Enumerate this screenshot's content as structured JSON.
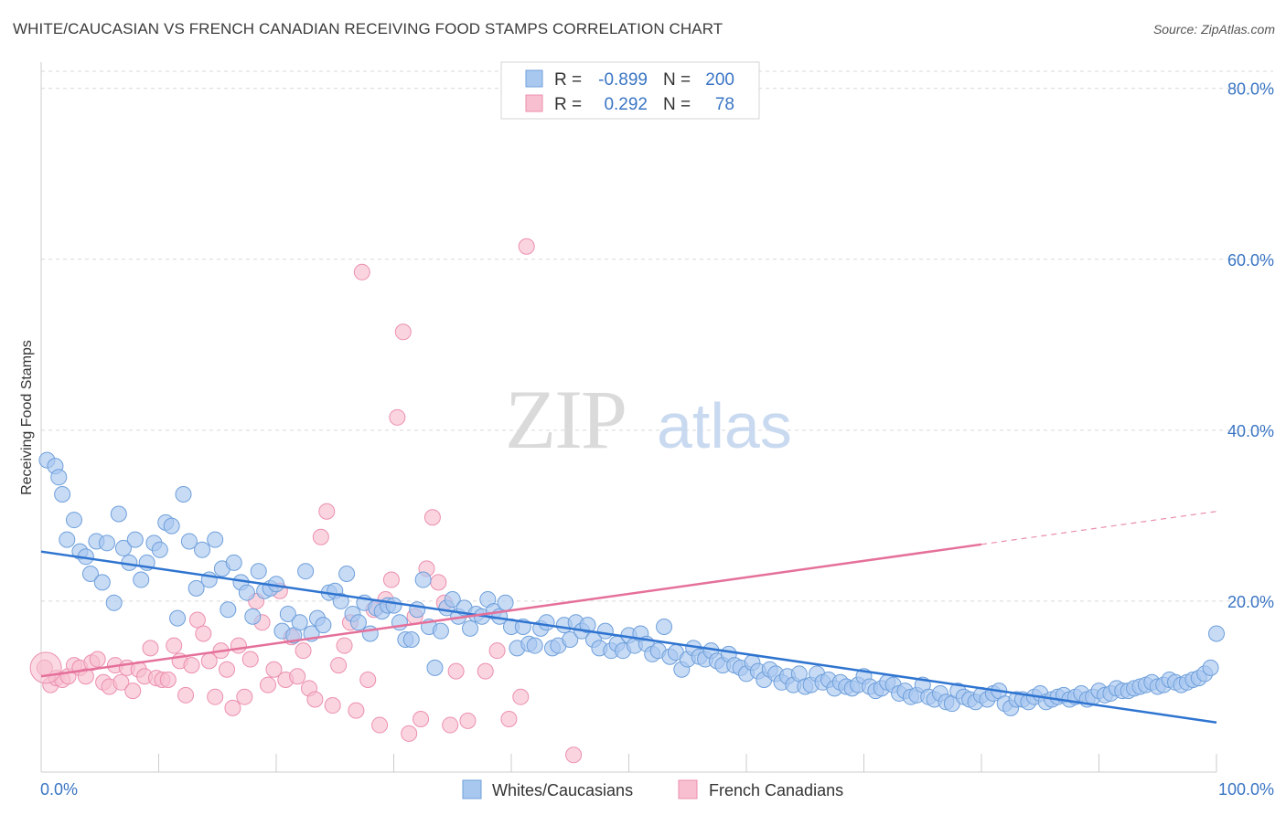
{
  "title": "WHITE/CAUCASIAN VS FRENCH CANADIAN RECEIVING FOOD STAMPS CORRELATION CHART",
  "source": "Source: ZipAtlas.com",
  "watermark": {
    "zip": "ZIP",
    "atlas": "atlas"
  },
  "colors": {
    "blue_fill": "#a9c8ef",
    "blue_stroke": "#6e9fdb",
    "blue_line": "#2e74d0",
    "pink_fill": "#f7bfd0",
    "pink_stroke": "#ec8fae",
    "pink_line": "#e5709a",
    "tick_text": "#3a75c4",
    "grid": "#d9d9d9"
  },
  "legend": {
    "r_label": "R =",
    "n_label": "N =",
    "rows": [
      {
        "r": "-0.899",
        "n": "200",
        "swatch": "blue"
      },
      {
        "r": "0.292",
        "n": "78",
        "swatch": "pink"
      }
    ]
  },
  "bottom_legend": [
    "Whites/Caucasians",
    "French Canadians"
  ],
  "chart_data": {
    "type": "scatter",
    "title": "WHITE/CAUCASIAN VS FRENCH CANADIAN RECEIVING FOOD STAMPS CORRELATION CHART",
    "xlabel": "",
    "ylabel": "Receiving Food Stamps",
    "xlim": [
      0,
      100
    ],
    "ylim": [
      0,
      82
    ],
    "x_tick_labels": [
      "0.0%",
      "100.0%"
    ],
    "y_ticks": [
      20,
      40,
      60,
      80
    ],
    "y_tick_labels": [
      "20.0%",
      "40.0%",
      "60.0%",
      "80.0%"
    ],
    "grid": "horizontal dashed",
    "legend_position": "top-center",
    "series": [
      {
        "name": "Whites/Caucasians",
        "color": "#a9c8ef",
        "trend": {
          "x": [
            0,
            100
          ],
          "y": [
            25.8,
            5.8
          ],
          "dashed_from": null
        },
        "points": [
          [
            0.5,
            36.5
          ],
          [
            1.2,
            35.8
          ],
          [
            1.5,
            34.5
          ],
          [
            1.8,
            32.5
          ],
          [
            2.2,
            27.2
          ],
          [
            2.8,
            29.5
          ],
          [
            3.3,
            25.8
          ],
          [
            3.8,
            25.2
          ],
          [
            4.2,
            23.2
          ],
          [
            4.7,
            27.0
          ],
          [
            5.2,
            22.2
          ],
          [
            5.6,
            26.8
          ],
          [
            6.2,
            19.8
          ],
          [
            6.6,
            30.2
          ],
          [
            7.0,
            26.2
          ],
          [
            7.5,
            24.5
          ],
          [
            8.0,
            27.2
          ],
          [
            8.5,
            22.5
          ],
          [
            9.0,
            24.5
          ],
          [
            9.6,
            26.8
          ],
          [
            10.1,
            26.0
          ],
          [
            10.6,
            29.2
          ],
          [
            11.1,
            28.8
          ],
          [
            11.6,
            18.0
          ],
          [
            12.1,
            32.5
          ],
          [
            12.6,
            27.0
          ],
          [
            13.2,
            21.5
          ],
          [
            13.7,
            26.0
          ],
          [
            14.3,
            22.5
          ],
          [
            14.8,
            27.2
          ],
          [
            15.4,
            23.8
          ],
          [
            15.9,
            19.0
          ],
          [
            16.4,
            24.5
          ],
          [
            17.0,
            22.2
          ],
          [
            17.5,
            21.0
          ],
          [
            18.0,
            18.2
          ],
          [
            18.5,
            23.5
          ],
          [
            19.0,
            21.2
          ],
          [
            19.5,
            21.5
          ],
          [
            20.0,
            22.0
          ],
          [
            20.5,
            16.5
          ],
          [
            21.0,
            18.5
          ],
          [
            21.5,
            16.0
          ],
          [
            22.0,
            17.5
          ],
          [
            22.5,
            23.5
          ],
          [
            23.0,
            16.2
          ],
          [
            23.5,
            18.0
          ],
          [
            24.0,
            17.2
          ],
          [
            24.5,
            21.0
          ],
          [
            25.0,
            21.2
          ],
          [
            25.5,
            20.0
          ],
          [
            26.0,
            23.2
          ],
          [
            26.5,
            18.5
          ],
          [
            27.0,
            17.5
          ],
          [
            27.5,
            19.8
          ],
          [
            28.0,
            16.2
          ],
          [
            28.5,
            19.2
          ],
          [
            29.0,
            18.8
          ],
          [
            29.5,
            19.5
          ],
          [
            30.0,
            19.5
          ],
          [
            30.5,
            17.5
          ],
          [
            31.0,
            15.5
          ],
          [
            31.5,
            15.5
          ],
          [
            32.0,
            19.0
          ],
          [
            32.5,
            22.5
          ],
          [
            33.0,
            17.0
          ],
          [
            33.5,
            12.2
          ],
          [
            34.0,
            16.5
          ],
          [
            34.5,
            19.2
          ],
          [
            35.0,
            20.2
          ],
          [
            35.5,
            18.2
          ],
          [
            36.0,
            19.2
          ],
          [
            36.5,
            16.8
          ],
          [
            37.0,
            18.5
          ],
          [
            37.5,
            18.2
          ],
          [
            38.0,
            20.2
          ],
          [
            38.5,
            18.8
          ],
          [
            39.0,
            18.2
          ],
          [
            39.5,
            19.8
          ],
          [
            40.0,
            17.0
          ],
          [
            40.5,
            14.5
          ],
          [
            41.0,
            17.0
          ],
          [
            41.5,
            15.0
          ],
          [
            42.0,
            14.8
          ],
          [
            42.5,
            16.8
          ],
          [
            43.0,
            17.5
          ],
          [
            43.5,
            14.5
          ],
          [
            44.0,
            14.8
          ],
          [
            44.5,
            17.2
          ],
          [
            45.0,
            15.5
          ],
          [
            45.5,
            17.5
          ],
          [
            46.0,
            16.5
          ],
          [
            46.5,
            17.2
          ],
          [
            47.0,
            15.5
          ],
          [
            47.5,
            14.5
          ],
          [
            48.0,
            16.5
          ],
          [
            48.5,
            14.2
          ],
          [
            49.0,
            15.0
          ],
          [
            49.5,
            14.2
          ],
          [
            50.0,
            16.0
          ],
          [
            50.5,
            14.8
          ],
          [
            51.0,
            16.2
          ],
          [
            51.5,
            15.0
          ],
          [
            52.0,
            13.8
          ],
          [
            52.5,
            14.2
          ],
          [
            53.0,
            17.0
          ],
          [
            53.5,
            13.5
          ],
          [
            54.0,
            14.0
          ],
          [
            54.5,
            12.0
          ],
          [
            55.0,
            13.2
          ],
          [
            55.5,
            14.5
          ],
          [
            56.0,
            13.5
          ],
          [
            56.5,
            13.2
          ],
          [
            57.0,
            14.2
          ],
          [
            57.5,
            13.0
          ],
          [
            58.0,
            12.5
          ],
          [
            58.5,
            13.8
          ],
          [
            59.0,
            12.5
          ],
          [
            59.5,
            12.2
          ],
          [
            60.0,
            11.5
          ],
          [
            60.5,
            12.8
          ],
          [
            61.0,
            11.8
          ],
          [
            61.5,
            10.8
          ],
          [
            62.0,
            12.0
          ],
          [
            62.5,
            11.5
          ],
          [
            63.0,
            10.5
          ],
          [
            63.5,
            11.2
          ],
          [
            64.0,
            10.2
          ],
          [
            64.5,
            11.5
          ],
          [
            65.0,
            10.0
          ],
          [
            65.5,
            10.2
          ],
          [
            66.0,
            11.5
          ],
          [
            66.5,
            10.5
          ],
          [
            67.0,
            10.8
          ],
          [
            67.5,
            9.8
          ],
          [
            68.0,
            10.5
          ],
          [
            68.5,
            10.0
          ],
          [
            69.0,
            9.8
          ],
          [
            69.5,
            10.2
          ],
          [
            70.0,
            11.2
          ],
          [
            70.5,
            10.0
          ],
          [
            71.0,
            9.5
          ],
          [
            71.5,
            9.8
          ],
          [
            72.0,
            10.5
          ],
          [
            72.5,
            10.2
          ],
          [
            73.0,
            9.2
          ],
          [
            73.5,
            9.5
          ],
          [
            74.0,
            8.8
          ],
          [
            74.5,
            9.0
          ],
          [
            75.0,
            10.2
          ],
          [
            75.5,
            8.8
          ],
          [
            76.0,
            8.5
          ],
          [
            76.5,
            9.2
          ],
          [
            77.0,
            8.2
          ],
          [
            77.5,
            8.0
          ],
          [
            78.0,
            9.5
          ],
          [
            78.5,
            8.8
          ],
          [
            79.0,
            8.5
          ],
          [
            79.5,
            8.2
          ],
          [
            80.0,
            9.0
          ],
          [
            80.5,
            8.5
          ],
          [
            81.0,
            9.2
          ],
          [
            81.5,
            9.5
          ],
          [
            82.0,
            8.0
          ],
          [
            82.5,
            7.5
          ],
          [
            83.0,
            8.5
          ],
          [
            83.5,
            8.5
          ],
          [
            84.0,
            8.2
          ],
          [
            84.5,
            8.8
          ],
          [
            85.0,
            9.2
          ],
          [
            85.5,
            8.2
          ],
          [
            86.0,
            8.5
          ],
          [
            86.5,
            8.8
          ],
          [
            87.0,
            9.0
          ],
          [
            87.5,
            8.5
          ],
          [
            88.0,
            8.8
          ],
          [
            88.5,
            9.2
          ],
          [
            89.0,
            8.5
          ],
          [
            89.5,
            8.8
          ],
          [
            90.0,
            9.5
          ],
          [
            90.5,
            9.0
          ],
          [
            91.0,
            9.2
          ],
          [
            91.5,
            9.8
          ],
          [
            92.0,
            9.5
          ],
          [
            92.5,
            9.5
          ],
          [
            93.0,
            9.8
          ],
          [
            93.5,
            10.0
          ],
          [
            94.0,
            10.2
          ],
          [
            94.5,
            10.5
          ],
          [
            95.0,
            10.0
          ],
          [
            95.5,
            10.2
          ],
          [
            96.0,
            10.8
          ],
          [
            96.5,
            10.5
          ],
          [
            97.0,
            10.2
          ],
          [
            97.5,
            10.5
          ],
          [
            98.0,
            10.8
          ],
          [
            98.5,
            11.0
          ],
          [
            99.0,
            11.5
          ],
          [
            99.5,
            12.2
          ],
          [
            100.0,
            16.2
          ]
        ]
      },
      {
        "name": "French Canadians",
        "color": "#f7bfd0",
        "trend": {
          "x": [
            0,
            100
          ],
          "y": [
            11.2,
            30.5
          ],
          "dashed_from": 80
        },
        "points": [
          [
            0.3,
            12.2
          ],
          [
            0.8,
            10.2
          ],
          [
            1.3,
            11.0
          ],
          [
            1.8,
            10.8
          ],
          [
            2.3,
            11.2
          ],
          [
            2.8,
            12.5
          ],
          [
            3.3,
            12.2
          ],
          [
            3.8,
            11.2
          ],
          [
            4.3,
            12.8
          ],
          [
            4.8,
            13.2
          ],
          [
            5.3,
            10.5
          ],
          [
            5.8,
            10.0
          ],
          [
            6.3,
            12.5
          ],
          [
            6.8,
            10.5
          ],
          [
            7.3,
            12.2
          ],
          [
            7.8,
            9.5
          ],
          [
            8.3,
            12.0
          ],
          [
            8.8,
            11.2
          ],
          [
            9.3,
            14.5
          ],
          [
            9.8,
            11.0
          ],
          [
            10.3,
            10.8
          ],
          [
            10.8,
            10.8
          ],
          [
            11.3,
            14.8
          ],
          [
            11.8,
            13.0
          ],
          [
            12.3,
            9.0
          ],
          [
            12.8,
            12.5
          ],
          [
            13.3,
            17.8
          ],
          [
            13.8,
            16.2
          ],
          [
            14.3,
            13.0
          ],
          [
            14.8,
            8.8
          ],
          [
            15.3,
            14.2
          ],
          [
            15.8,
            12.0
          ],
          [
            16.3,
            7.5
          ],
          [
            16.8,
            14.8
          ],
          [
            17.3,
            8.8
          ],
          [
            17.8,
            13.2
          ],
          [
            18.3,
            20.0
          ],
          [
            18.8,
            17.5
          ],
          [
            19.3,
            10.2
          ],
          [
            19.8,
            12.0
          ],
          [
            20.3,
            21.2
          ],
          [
            20.8,
            10.8
          ],
          [
            21.3,
            15.8
          ],
          [
            21.8,
            11.2
          ],
          [
            22.3,
            14.2
          ],
          [
            22.8,
            9.8
          ],
          [
            23.3,
            8.5
          ],
          [
            23.8,
            27.5
          ],
          [
            24.3,
            30.5
          ],
          [
            24.8,
            7.8
          ],
          [
            25.3,
            12.5
          ],
          [
            25.8,
            14.8
          ],
          [
            26.3,
            17.5
          ],
          [
            26.8,
            7.2
          ],
          [
            27.3,
            58.5
          ],
          [
            27.8,
            10.8
          ],
          [
            28.3,
            19.0
          ],
          [
            28.8,
            5.5
          ],
          [
            29.3,
            20.2
          ],
          [
            29.8,
            22.5
          ],
          [
            30.3,
            41.5
          ],
          [
            30.8,
            51.5
          ],
          [
            31.3,
            4.5
          ],
          [
            31.8,
            18.2
          ],
          [
            32.3,
            6.2
          ],
          [
            32.8,
            23.8
          ],
          [
            33.3,
            29.8
          ],
          [
            33.8,
            22.2
          ],
          [
            34.3,
            19.8
          ],
          [
            34.8,
            5.5
          ],
          [
            35.3,
            11.8
          ],
          [
            36.3,
            6.0
          ],
          [
            37.8,
            11.8
          ],
          [
            38.8,
            14.2
          ],
          [
            39.8,
            6.2
          ],
          [
            40.8,
            8.8
          ],
          [
            41.3,
            61.5
          ],
          [
            45.3,
            2.0
          ]
        ]
      }
    ]
  }
}
